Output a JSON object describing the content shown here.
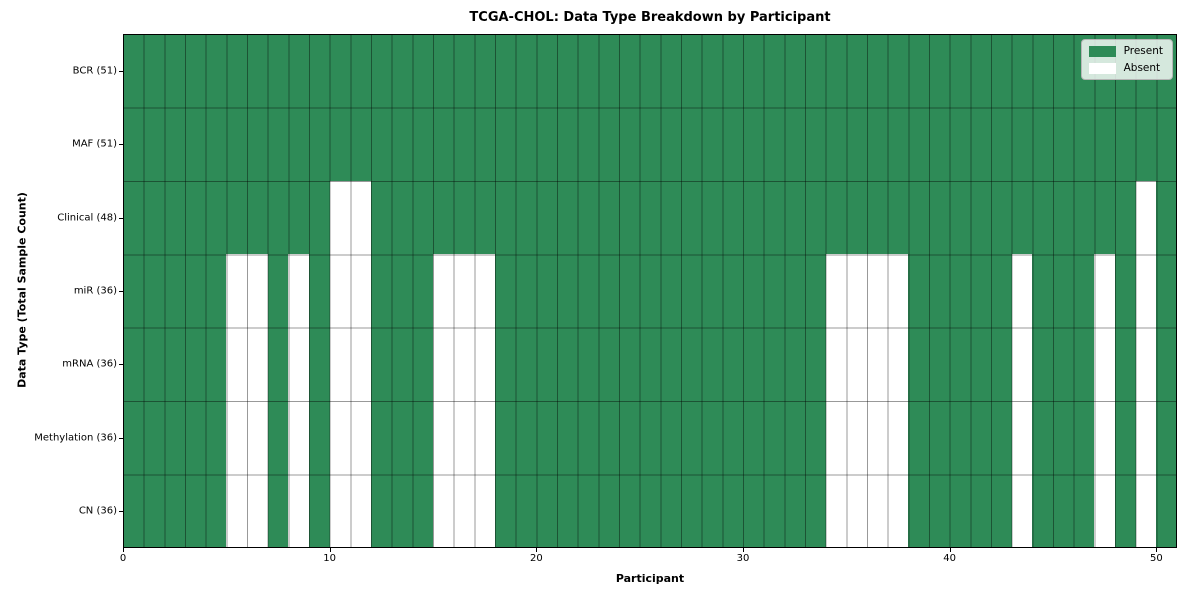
{
  "chart_data": {
    "type": "heatmap",
    "title": "TCGA-CHOL: Data Type Breakdown by Participant",
    "xlabel": "Participant",
    "ylabel": "Data Type (Total Sample Count)",
    "n_participants": 51,
    "x_range": [
      0,
      51
    ],
    "x_ticks": [
      0,
      10,
      20,
      30,
      40,
      50
    ],
    "grid": true,
    "rows": [
      {
        "label": "BCR (51)",
        "count": 51,
        "absent": []
      },
      {
        "label": "MAF (51)",
        "count": 51,
        "absent": []
      },
      {
        "label": "Clinical (48)",
        "count": 48,
        "absent": [
          10,
          11,
          49
        ]
      },
      {
        "label": "miR (36)",
        "count": 36,
        "absent": [
          5,
          6,
          8,
          10,
          11,
          15,
          16,
          17,
          34,
          35,
          36,
          37,
          43,
          47,
          49
        ]
      },
      {
        "label": "mRNA (36)",
        "count": 36,
        "absent": [
          5,
          6,
          8,
          10,
          11,
          15,
          16,
          17,
          34,
          35,
          36,
          37,
          43,
          47,
          49
        ]
      },
      {
        "label": "Methylation (36)",
        "count": 36,
        "absent": [
          5,
          6,
          8,
          10,
          11,
          15,
          16,
          17,
          34,
          35,
          36,
          37,
          43,
          47,
          49
        ]
      },
      {
        "label": "CN (36)",
        "count": 36,
        "absent": [
          5,
          6,
          8,
          10,
          11,
          15,
          16,
          17,
          34,
          35,
          36,
          37,
          43,
          47,
          49
        ]
      }
    ],
    "legend": {
      "position": "upper right",
      "entries": [
        {
          "label": "Present",
          "color": "#2E8B57"
        },
        {
          "label": "Absent",
          "color": "#FFFFFF"
        }
      ]
    },
    "colors": {
      "present": "#2E8B57",
      "absent": "#FFFFFF",
      "grid_line": "rgba(0,0,0,0.4)",
      "plot_border": "#000000"
    }
  }
}
